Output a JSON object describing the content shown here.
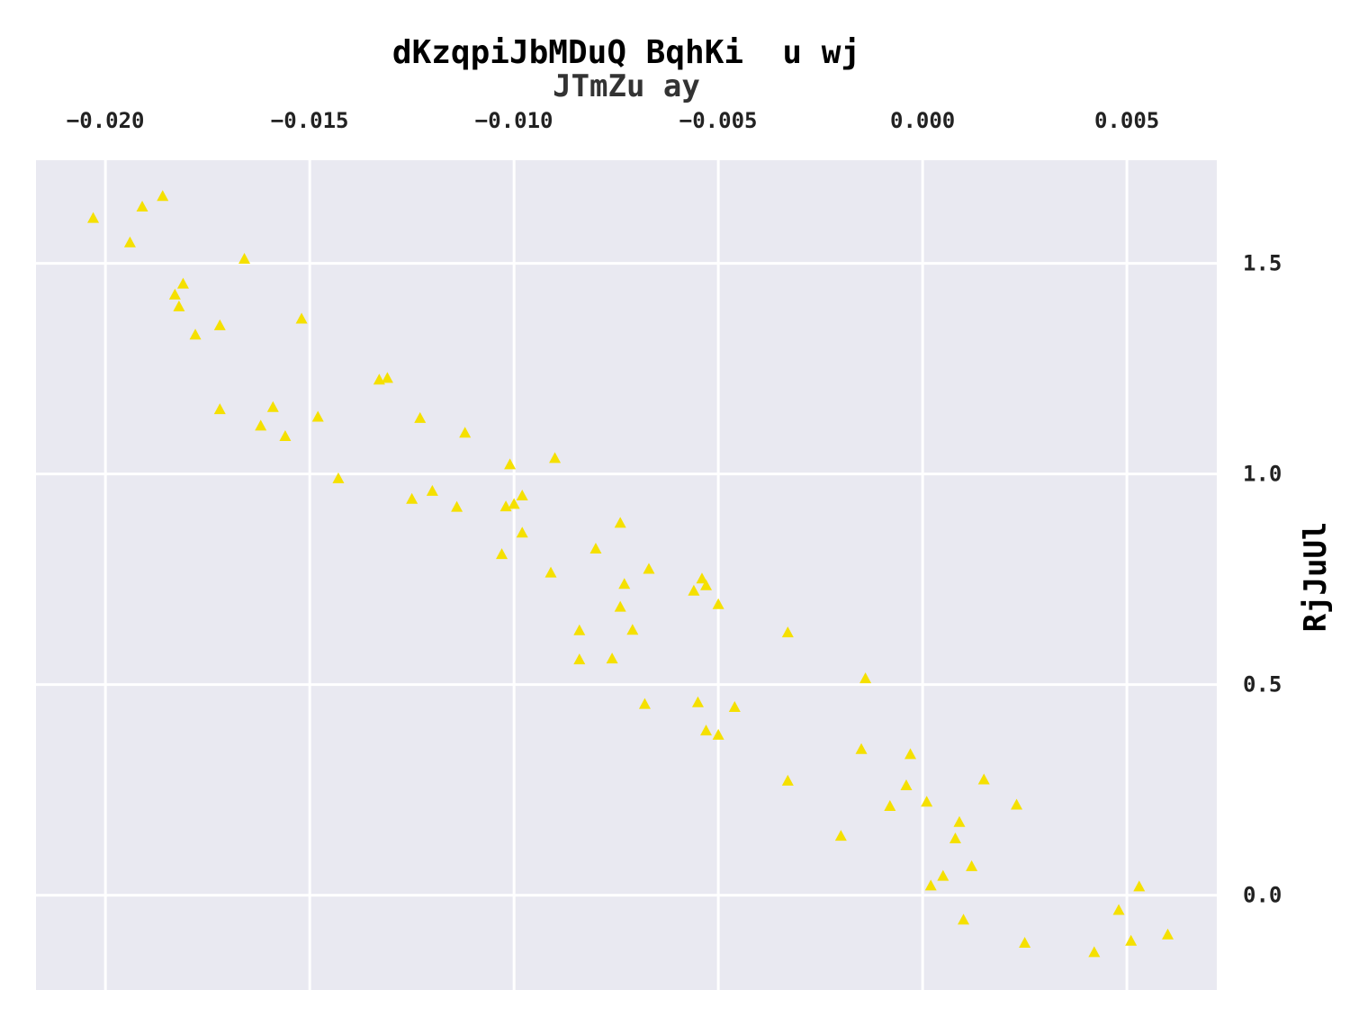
{
  "chart_data": {
    "type": "scatter",
    "title": "dKzqpiJbMDuQ BqhKi  u wj",
    "xlabel": "JTmZu ay",
    "ylabel": "RjJuUl",
    "x_axis_position": "top",
    "y_axis_position": "right",
    "xlim": [
      -0.0217,
      0.0072
    ],
    "ylim": [
      -0.225,
      1.745
    ],
    "x_ticks": [
      -0.02,
      -0.015,
      -0.01,
      -0.005,
      0.0,
      0.005
    ],
    "x_tick_labels": [
      "−0.020",
      "−0.015",
      "−0.010",
      "−0.005",
      "0.000",
      "0.005"
    ],
    "y_ticks": [
      0.0,
      0.5,
      1.0,
      1.5
    ],
    "y_tick_labels": [
      "0.0",
      "0.5",
      "1.0",
      "1.5"
    ],
    "grid": true,
    "marker": "triangle",
    "colors": {
      "marker": "#f5e000",
      "plot_background": "#e9e9f1",
      "grid": "#ffffff"
    },
    "series": [
      {
        "points": [
          [
            -0.0203,
            1.607
          ],
          [
            -0.0194,
            1.549
          ],
          [
            -0.0191,
            1.634
          ],
          [
            -0.0186,
            1.659
          ],
          [
            -0.0166,
            1.51
          ],
          [
            -0.0183,
            1.425
          ],
          [
            -0.0181,
            1.451
          ],
          [
            -0.0182,
            1.397
          ],
          [
            -0.0178,
            1.33
          ],
          [
            -0.0172,
            1.352
          ],
          [
            -0.0152,
            1.368
          ],
          [
            -0.0172,
            1.153
          ],
          [
            -0.0159,
            1.158
          ],
          [
            -0.0162,
            1.114
          ],
          [
            -0.0156,
            1.089
          ],
          [
            -0.0148,
            1.135
          ],
          [
            -0.0133,
            1.223
          ],
          [
            -0.0131,
            1.227
          ],
          [
            -0.0123,
            1.132
          ],
          [
            -0.0112,
            1.097
          ],
          [
            -0.0101,
            1.022
          ],
          [
            -0.009,
            1.037
          ],
          [
            -0.0143,
            0.989
          ],
          [
            -0.0125,
            0.94
          ],
          [
            -0.012,
            0.959
          ],
          [
            -0.0114,
            0.921
          ],
          [
            -0.0102,
            0.922
          ],
          [
            -0.01,
            0.928
          ],
          [
            -0.0098,
            0.948
          ],
          [
            -0.0098,
            0.86
          ],
          [
            -0.0103,
            0.809
          ],
          [
            -0.0091,
            0.765
          ],
          [
            -0.0074,
            0.883
          ],
          [
            -0.008,
            0.822
          ],
          [
            -0.0067,
            0.774
          ],
          [
            -0.0073,
            0.738
          ],
          [
            -0.0074,
            0.684
          ],
          [
            -0.0071,
            0.629
          ],
          [
            -0.0084,
            0.628
          ],
          [
            -0.0084,
            0.559
          ],
          [
            -0.0076,
            0.561
          ],
          [
            -0.0056,
            0.722
          ],
          [
            -0.0054,
            0.751
          ],
          [
            -0.0053,
            0.735
          ],
          [
            -0.005,
            0.69
          ],
          [
            -0.0033,
            0.623
          ],
          [
            -0.0014,
            0.514
          ],
          [
            -0.0068,
            0.453
          ],
          [
            -0.0055,
            0.457
          ],
          [
            -0.0046,
            0.446
          ],
          [
            -0.0053,
            0.39
          ],
          [
            -0.005,
            0.38
          ],
          [
            -0.0033,
            0.271
          ],
          [
            -0.0015,
            0.346
          ],
          [
            -0.0003,
            0.334
          ],
          [
            -0.0004,
            0.26
          ],
          [
            -0.0008,
            0.211
          ],
          [
            0.0001,
            0.221
          ],
          [
            0.0015,
            0.274
          ],
          [
            0.0023,
            0.214
          ],
          [
            -0.002,
            0.14
          ],
          [
            0.0009,
            0.173
          ],
          [
            0.0008,
            0.134
          ],
          [
            0.0012,
            0.068
          ],
          [
            0.0005,
            0.045
          ],
          [
            0.0002,
            0.022
          ],
          [
            0.001,
            -0.059
          ],
          [
            0.0025,
            -0.114
          ],
          [
            0.0042,
            -0.136
          ],
          [
            0.0048,
            -0.036
          ],
          [
            0.0051,
            -0.109
          ],
          [
            0.0053,
            0.02
          ],
          [
            0.006,
            -0.094
          ]
        ]
      }
    ]
  }
}
